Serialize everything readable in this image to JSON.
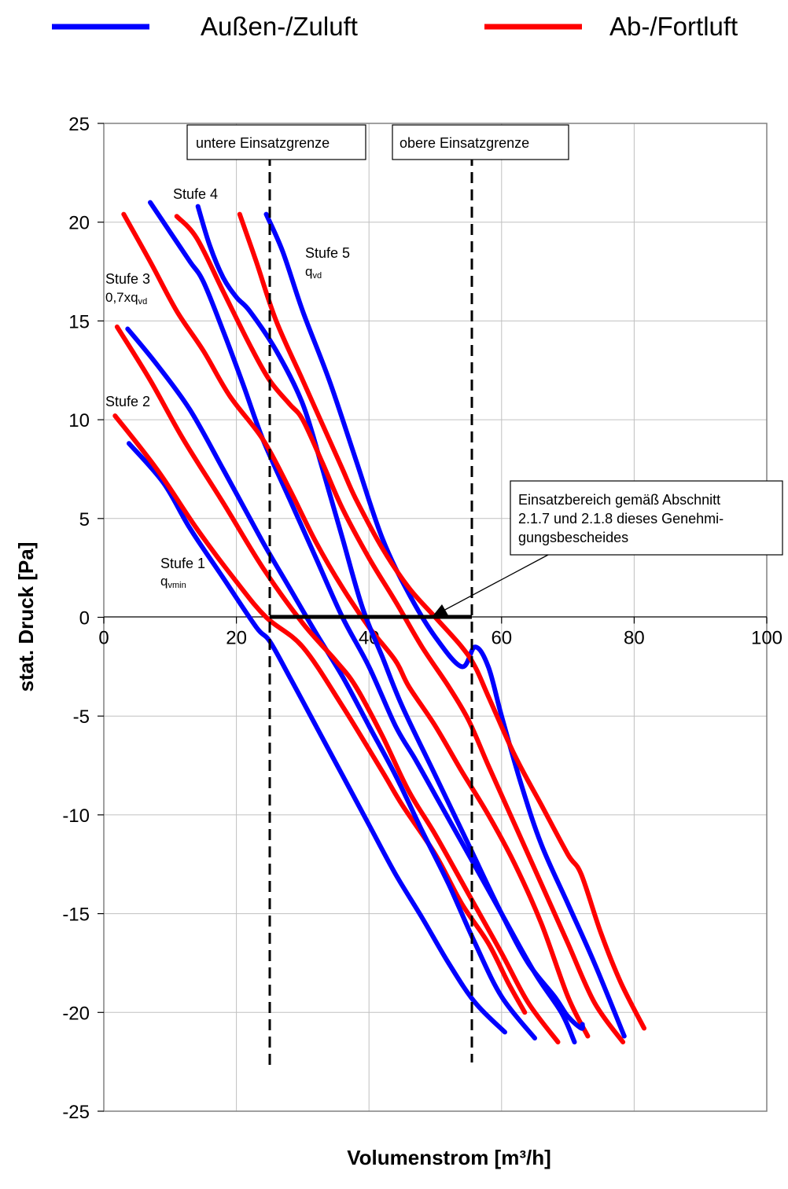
{
  "legend": [
    {
      "label": "Außen-/Zuluft",
      "color": "#0000ff"
    },
    {
      "label": "Ab-/Fortluft",
      "color": "#ff0000"
    }
  ],
  "chart_data": {
    "type": "line",
    "xlabel": "Volumenstrom [m³/h]",
    "ylabel": "stat. Druck [Pa]",
    "xlim": [
      0,
      100
    ],
    "ylim": [
      -25,
      25
    ],
    "xticks": [
      0,
      20,
      40,
      60,
      80,
      100
    ],
    "yticks": [
      25,
      20,
      15,
      10,
      5,
      0,
      -5,
      -10,
      -15,
      -20,
      -25
    ],
    "grid": true,
    "legend_position": "top",
    "colors": {
      "zuluft": "#0000ff",
      "fortluft": "#ff0000"
    },
    "series": [
      {
        "name": "Außen-/Zuluft",
        "color": "#0000ff",
        "x": [
          3.8,
          9,
          13,
          18,
          23,
          25,
          28,
          32,
          36,
          40,
          44,
          48,
          52,
          56,
          60.5
        ],
        "y": [
          8.8,
          6.8,
          4.5,
          2,
          -0.5,
          -1.2,
          -3,
          -5.5,
          -8,
          -10.5,
          -13,
          -15.2,
          -17.5,
          -19.5,
          -21
        ]
      },
      {
        "name": "Ab-/Fortluft",
        "color": "#ff0000",
        "x": [
          1.7,
          8,
          14,
          20,
          24.5,
          30,
          36,
          42,
          45,
          50,
          54,
          58,
          61,
          63.5
        ],
        "y": [
          10.2,
          7.5,
          4.5,
          1.8,
          0,
          -1.5,
          -4.5,
          -7.8,
          -9.5,
          -12,
          -14.5,
          -16.5,
          -18.5,
          -20
        ]
      },
      {
        "name": "Außen-/Zuluft",
        "color": "#0000ff",
        "x": [
          3.6,
          8,
          13,
          18,
          24,
          28,
          32,
          36,
          40,
          44,
          48,
          52,
          56,
          60,
          65
        ],
        "y": [
          14.6,
          12.8,
          10.5,
          7.5,
          3.8,
          1.5,
          -0.8,
          -3,
          -5.5,
          -8,
          -10.8,
          -13.5,
          -16.5,
          -19.2,
          -21.3
        ]
      },
      {
        "name": "Ab-/Fortluft",
        "color": "#ff0000",
        "x": [
          2,
          7,
          12,
          18,
          24,
          30,
          35,
          38,
          42,
          46,
          50,
          55,
          60,
          64,
          68.5
        ],
        "y": [
          14.7,
          12,
          9,
          5.8,
          2.5,
          -0.3,
          -2.2,
          -3.5,
          -6,
          -8.8,
          -11,
          -14,
          -17,
          -19.5,
          -21.5
        ]
      },
      {
        "name": "Außen-/Zuluft",
        "color": "#0000ff",
        "x": [
          7,
          10,
          13,
          15,
          18,
          21,
          24,
          28,
          32,
          36,
          40,
          44,
          47,
          50,
          55,
          60,
          65,
          69,
          71
        ],
        "y": [
          21,
          19.5,
          18,
          17,
          14.5,
          11.8,
          9,
          6,
          3,
          0,
          -2.5,
          -5.5,
          -7.2,
          -9,
          -12,
          -15,
          -18,
          -20,
          -21.5
        ]
      },
      {
        "name": "Ab-/Fortluft",
        "color": "#ff0000",
        "x": [
          3,
          7,
          11,
          15,
          19,
          24,
          28,
          32,
          36,
          40,
          44,
          46,
          50,
          54,
          58,
          62,
          66,
          70,
          73
        ],
        "y": [
          20.4,
          18,
          15.5,
          13.5,
          11.2,
          9,
          6.5,
          3.8,
          1.5,
          -0.5,
          -2.2,
          -3.5,
          -5.5,
          -7.8,
          -10,
          -12.5,
          -15.5,
          -19.2,
          -21.2
        ]
      },
      {
        "name": "Außen-/Zuluft",
        "color": "#0000ff",
        "x": [
          14.2,
          16,
          18,
          20,
          22,
          26,
          30,
          33,
          36,
          39,
          42,
          45,
          50,
          55,
          60,
          64,
          68,
          70,
          72,
          72.2
        ],
        "y": [
          20.8,
          18.8,
          17.2,
          16.2,
          15.5,
          13.5,
          10.8,
          7.5,
          4,
          0.5,
          -2,
          -4.5,
          -8,
          -11.5,
          -15,
          -17.5,
          -19.2,
          -20.2,
          -20.8,
          -20.6
        ]
      },
      {
        "name": "Ab-/Fortluft",
        "color": "#ff0000",
        "x": [
          11,
          14,
          18,
          22,
          25,
          28,
          30,
          33,
          36,
          40,
          44,
          48,
          52,
          55,
          58,
          62,
          66,
          70,
          74,
          78.3
        ],
        "y": [
          20.3,
          19.2,
          16.5,
          13.8,
          12,
          10.8,
          10,
          7.8,
          5.5,
          3,
          0.8,
          -1.5,
          -3.5,
          -5.2,
          -7.5,
          -10.5,
          -13.5,
          -16.5,
          -19.5,
          -21.5
        ]
      },
      {
        "name": "Außen-/Zuluft",
        "color": "#0000ff",
        "x": [
          24.5,
          27,
          30,
          34,
          38,
          42,
          46,
          50,
          54,
          56,
          58,
          60,
          63,
          66,
          70,
          74,
          78.5
        ],
        "y": [
          20.4,
          18.5,
          15.5,
          12,
          8,
          4,
          1.2,
          -1,
          -2.5,
          -1.5,
          -2.5,
          -5,
          -8.5,
          -11.5,
          -14.5,
          -17.5,
          -21.2
        ]
      },
      {
        "name": "Ab-/Fortluft",
        "color": "#ff0000",
        "x": [
          20.5,
          23,
          26,
          30,
          34,
          36,
          38,
          42,
          46,
          50,
          54,
          56,
          58,
          62,
          66,
          70,
          72,
          75,
          78,
          81.5
        ],
        "y": [
          20.4,
          18,
          15,
          12,
          9,
          7.5,
          6,
          3.5,
          1.5,
          0,
          -1.5,
          -2.5,
          -4,
          -7,
          -9.5,
          -12,
          -13,
          -16,
          -18.5,
          -20.8
        ]
      }
    ],
    "vlines": [
      {
        "x": 25,
        "label": "untere Einsatzgrenze"
      },
      {
        "x": 55,
        "label": "obere Einsatzgrenze"
      }
    ],
    "range_bar": {
      "x_from": 25,
      "x_to": 55,
      "y": 0
    },
    "annotations": {
      "stufe4": "Stufe 4",
      "stufe5": "Stufe 5",
      "stufe5_sub_q": "q",
      "stufe5_sub": "vd",
      "stufe3": "Stufe 3",
      "stufe3_l2": "0,7xq",
      "stufe3_sub": "vd",
      "stufe2": "Stufe 2",
      "stufe1": "Stufe 1",
      "stufe1_sub_q": "q",
      "stufe1_sub": "vmin",
      "einsatz_l1": "Einsatzbereich gemäß Abschnitt",
      "einsatz_l2": "2.1.7 und 2.1.8 dieses Genehmi-",
      "einsatz_l3": "gungsbescheides"
    }
  }
}
